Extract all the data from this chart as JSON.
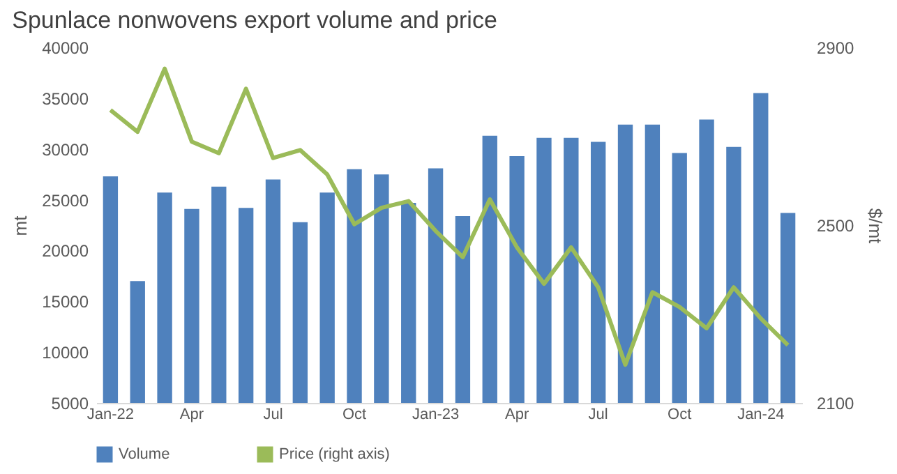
{
  "chart_data": {
    "type": "bar",
    "title": "Spunlace nonwovens export volume and price",
    "ylabel": "mt",
    "y2label": "$/mt",
    "categories": [
      "Jan-22",
      null,
      null,
      "Apr",
      null,
      null,
      "Jul",
      null,
      null,
      "Oct",
      null,
      null,
      "Jan-23",
      null,
      null,
      "Apr",
      null,
      null,
      "Jul",
      null,
      null,
      "Oct",
      null,
      null,
      "Jan-24",
      null
    ],
    "series": [
      {
        "name": "Volume",
        "color": "#4f81bd",
        "values": [
          27300,
          17000,
          25700,
          24100,
          26300,
          24200,
          27000,
          22800,
          25700,
          28000,
          27500,
          24700,
          28100,
          23400,
          31300,
          29300,
          31100,
          31100,
          30700,
          32400,
          32400,
          29600,
          32900,
          30200,
          35500,
          23700
        ]
      },
      {
        "name": "Price (right axis)",
        "type": "line",
        "axis": "y2",
        "color": "#9bbb59",
        "values": [
          2759,
          2710,
          2852,
          2688,
          2662,
          2807,
          2651,
          2669,
          2614,
          2502,
          2539,
          2554,
          2487,
          2428,
          2558,
          2450,
          2368,
          2450,
          2360,
          2186,
          2349,
          2316,
          2268,
          2360,
          2290,
          2230
        ]
      }
    ],
    "ylim": [
      5000,
      40000
    ],
    "yticks": [
      5000,
      10000,
      15000,
      20000,
      25000,
      30000,
      35000,
      40000
    ],
    "y2lim": [
      2100,
      2900
    ],
    "y2ticks": [
      2100,
      2500,
      2900
    ],
    "grid": false,
    "legend": "bottom"
  }
}
